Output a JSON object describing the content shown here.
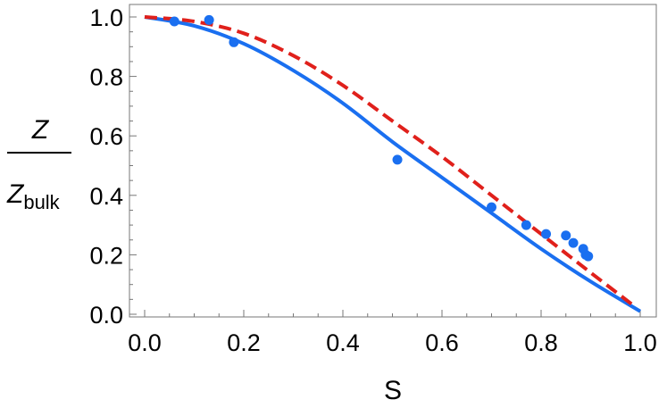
{
  "chart_data": {
    "type": "scatter",
    "xlabel": "S",
    "ylabel": {
      "numerator": "Z",
      "denominator": "Z",
      "denominator_subscript": "bulk"
    },
    "xlim": [
      0.0,
      1.0
    ],
    "ylim": [
      0.0,
      1.0
    ],
    "x_ticks": [
      "0.0",
      "0.2",
      "0.4",
      "0.6",
      "0.8",
      "1.0"
    ],
    "y_ticks": [
      "0.0",
      "0.2",
      "0.4",
      "0.6",
      "0.8",
      "1.0"
    ],
    "grid": false,
    "colors": {
      "points": "#1a6ff0",
      "solid_curve": "#1a6ff0",
      "dashed_curve": "#e0201b"
    },
    "series": [
      {
        "kind": "points",
        "x": [
          0.06,
          0.13,
          0.18,
          0.51,
          0.7,
          0.77,
          0.81,
          0.85,
          0.865,
          0.885,
          0.89,
          0.895
        ],
        "y": [
          0.985,
          0.99,
          0.915,
          0.52,
          0.36,
          0.3,
          0.27,
          0.265,
          0.24,
          0.22,
          0.2,
          0.195
        ]
      },
      {
        "kind": "solid-line",
        "x": [
          0.0,
          0.1,
          0.2,
          0.3,
          0.4,
          0.5,
          0.6,
          0.7,
          0.8,
          0.9,
          1.0
        ],
        "y": [
          1.0,
          0.97,
          0.91,
          0.82,
          0.71,
          0.58,
          0.46,
          0.34,
          0.22,
          0.11,
          0.01
        ]
      },
      {
        "kind": "dashed-line",
        "x": [
          0.0,
          0.1,
          0.2,
          0.3,
          0.4,
          0.5,
          0.6,
          0.7,
          0.8,
          0.9,
          0.99
        ],
        "y": [
          1.0,
          0.985,
          0.945,
          0.87,
          0.77,
          0.65,
          0.53,
          0.4,
          0.27,
          0.14,
          0.025
        ]
      }
    ]
  }
}
